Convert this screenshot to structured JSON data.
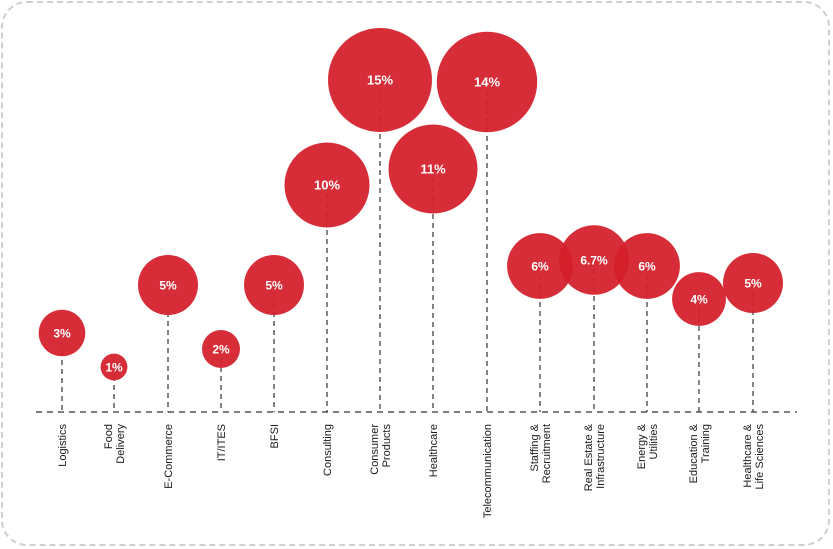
{
  "chart_data": {
    "type": "bubble",
    "title": "",
    "xlabel": "",
    "ylabel": "",
    "grid": false,
    "color": "#D4202C",
    "categories": [
      [
        "Logistics"
      ],
      [
        "Food",
        "Delivery"
      ],
      [
        "E-Commerce"
      ],
      [
        "IT/ITES"
      ],
      [
        "BFSI"
      ],
      [
        "Consulting"
      ],
      [
        "Consumer",
        "Products"
      ],
      [
        "Healthcare"
      ],
      [
        "Telecommunication"
      ],
      [
        "Staffing &",
        "Recruitment"
      ],
      [
        "Real Estate &",
        "Infrastructure"
      ],
      [
        "Energy &",
        "Utilities"
      ],
      [
        "Education &",
        "Training"
      ],
      [
        "Healthcare &",
        "Life Sciences"
      ]
    ],
    "values": [
      3,
      1,
      5,
      2,
      5,
      10,
      15,
      11,
      14,
      6,
      6.7,
      6,
      4,
      5
    ],
    "labels": [
      "3%",
      "1%",
      "5%",
      "2%",
      "5%",
      "10%",
      "15%",
      "11%",
      "14%",
      "6%",
      "6.7%",
      "6%",
      "4%",
      "5%"
    ]
  }
}
